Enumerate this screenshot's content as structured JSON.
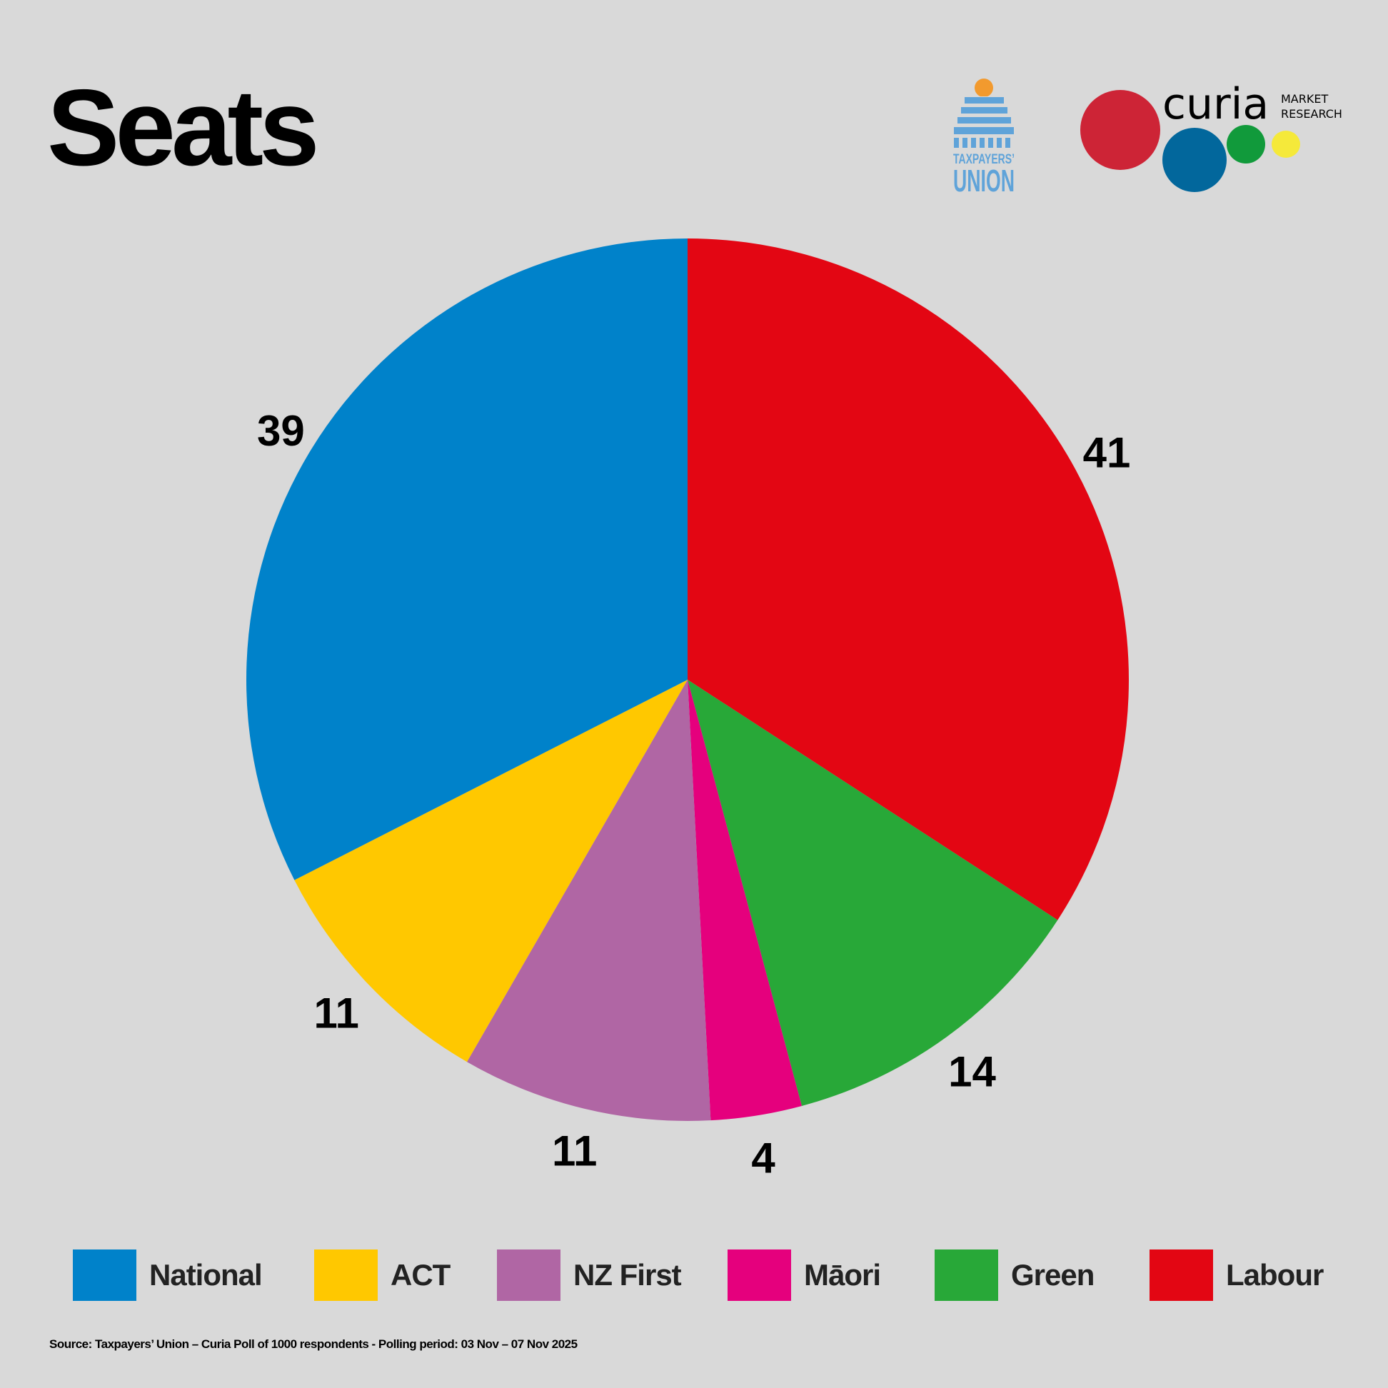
{
  "title": "Seats",
  "source": "Source: Taxpayers’ Union – Curia Poll of 1000 respondents -  Polling period: 03 Nov – 07 Nov 2025",
  "logos": {
    "taxpayers_union": {
      "line1": "TAXPAYERS’",
      "line2": "UNION",
      "color": "#5fa3d9"
    },
    "curia": {
      "name": "curia",
      "sub1": "MARKET",
      "sub2": "RESEARCH"
    }
  },
  "chart_data": {
    "type": "pie",
    "title": "Seats",
    "start": "top",
    "direction": "clockwise",
    "legend_position": "bottom",
    "slices": [
      {
        "name": "Labour",
        "value": 41,
        "color": "#E30613"
      },
      {
        "name": "Green",
        "value": 14,
        "color": "#28A838"
      },
      {
        "name": "Māori",
        "value": 4,
        "color": "#E5007D"
      },
      {
        "name": "NZ First",
        "value": 11,
        "color": "#B066A4"
      },
      {
        "name": "ACT",
        "value": 11,
        "color": "#FFC800"
      },
      {
        "name": "National",
        "value": 39,
        "color": "#0082CA"
      }
    ],
    "legend": [
      "National",
      "ACT",
      "NZ First",
      "Māori",
      "Green",
      "Labour"
    ]
  }
}
